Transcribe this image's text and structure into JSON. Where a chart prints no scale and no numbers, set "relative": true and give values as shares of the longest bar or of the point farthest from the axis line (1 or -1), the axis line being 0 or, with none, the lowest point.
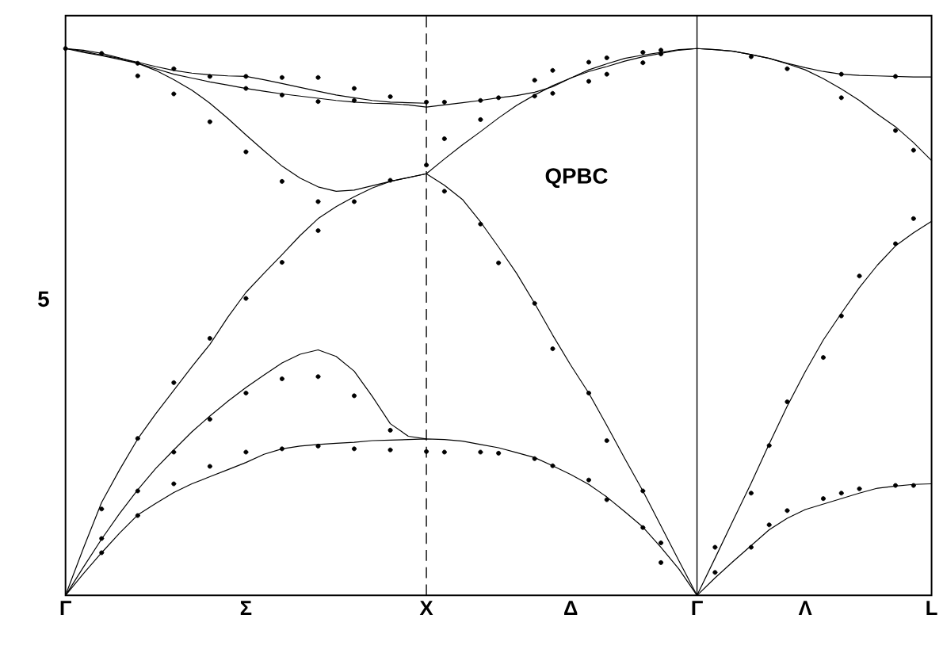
{
  "chart_data": {
    "type": "line",
    "relative": true,
    "annotations": [
      "QPBC",
      "5"
    ],
    "categories": [
      "Γ",
      null,
      null,
      null,
      null,
      null,
      null,
      null,
      null,
      null,
      "Σ",
      null,
      null,
      null,
      null,
      null,
      null,
      null,
      null,
      null,
      "X",
      null,
      null,
      null,
      null,
      null,
      null,
      null,
      "Δ",
      null,
      null,
      null,
      null,
      null,
      null,
      "Γ",
      null,
      null,
      null,
      null,
      null,
      "Λ",
      null,
      null,
      null,
      null,
      null,
      null,
      "L"
    ],
    "ref_lines": [
      {
        "axis": "x",
        "value": "X",
        "line_style": "dashed"
      }
    ],
    "series": [
      {
        "color": "#000000",
        "values": [
          0,
          0.04,
          0.078,
          0.114,
          0.147,
          0.168,
          0.188,
          0.204,
          0.217,
          0.23,
          0.243,
          0.258,
          0.268,
          0.273,
          0.276,
          0.278,
          0.28,
          0.283,
          0.284,
          0.285,
          0.286,
          0.285,
          0.282,
          0.276,
          0.27,
          0.261,
          0.252,
          0.237,
          0.221,
          0.203,
          0.18,
          0.153,
          0.125,
          0.088,
          0.048,
          0,
          0.032,
          0.062,
          0.091,
          0.12,
          0.141,
          0.157,
          0.167,
          0.177,
          0.187,
          0.196,
          0.2,
          0.203,
          0.204
        ]
      },
      {
        "color": "#000000",
        "values": [
          0,
          0.052,
          0.103,
          0.15,
          0.193,
          0.232,
          0.266,
          0.299,
          0.328,
          0.355,
          0.38,
          0.403,
          0.425,
          0.441,
          0.449,
          0.437,
          0.41,
          0.364,
          0.314,
          0.291,
          0.286,
          null,
          null,
          null,
          null,
          null,
          null,
          null,
          null,
          null,
          null,
          null,
          null,
          null,
          null,
          null,
          null,
          null,
          null,
          null,
          null,
          null,
          null,
          null,
          null,
          null,
          null,
          null,
          null
        ]
      },
      {
        "color": "#000000",
        "values": [
          0,
          0.087,
          0.17,
          0.23,
          0.286,
          0.332,
          0.375,
          0.418,
          0.459,
          0.509,
          0.554,
          0.589,
          0.623,
          0.658,
          0.689,
          0.711,
          0.729,
          0.745,
          0.757,
          0.764,
          0.771,
          0.75,
          0.724,
          0.683,
          0.637,
          0.589,
          0.534,
          0.476,
          0.421,
          0.37,
          0.311,
          0.25,
          0.191,
          0.127,
          0.063,
          0,
          0.068,
          0.137,
          0.205,
          0.277,
          0.346,
          0.409,
          0.467,
          0.516,
          0.563,
          0.604,
          0.639,
          0.663,
          0.684
        ]
      },
      {
        "color": "#000000",
        "values": [
          1,
          0.997,
          0.991,
          0.983,
          0.973,
          0.96,
          0.943,
          0.924,
          0.9,
          0.872,
          0.842,
          0.813,
          0.785,
          0.763,
          0.747,
          0.739,
          0.741,
          0.749,
          0.757,
          0.764,
          0.771,
          0.798,
          0.824,
          0.848,
          0.873,
          0.896,
          0.915,
          0.932,
          0.946,
          0.958,
          0.967,
          0.977,
          0.985,
          0.991,
          0.997,
          1,
          0.998,
          0.995,
          0.989,
          0.982,
          0.972,
          0.961,
          0.945,
          0.926,
          0.905,
          0.88,
          0.857,
          0.828,
          0.795
        ]
      },
      {
        "color": "#000000",
        "values": [
          1,
          0.993,
          0.987,
          0.98,
          0.973,
          0.963,
          0.953,
          0.946,
          0.939,
          0.933,
          0.927,
          0.922,
          0.917,
          0.913,
          0.909,
          0.905,
          0.902,
          0.9,
          0.899,
          0.897,
          0.893,
          0.897,
          0.901,
          0.905,
          0.91,
          0.914,
          0.92,
          0.93,
          0.946,
          0.961,
          0.972,
          0.982,
          0.988,
          0.993,
          0.998,
          1,
          0.998,
          0.995,
          0.989,
          0.982,
          0.973,
          0.965,
          0.958,
          0.953,
          0.951,
          0.95,
          0.949,
          0.948,
          0.948
        ]
      },
      {
        "color": "#000000",
        "values": [
          1,
          0.995,
          0.988,
          0.982,
          0.975,
          0.967,
          0.96,
          0.955,
          0.952,
          0.95,
          0.949,
          0.943,
          0.936,
          0.929,
          0.922,
          0.915,
          0.91,
          0.905,
          0.902,
          0.901,
          0.9,
          null,
          null,
          null,
          null,
          null,
          null,
          null,
          null,
          null,
          null,
          null,
          null,
          null,
          null,
          null,
          null,
          null,
          null,
          null,
          null,
          null,
          null,
          null,
          null,
          null,
          null,
          null,
          null
        ]
      },
      {
        "type": "scatter",
        "color": "#000000",
        "marker": "circle",
        "values": [
          1,
          null,
          0.078,
          null,
          0.146,
          null,
          0.204,
          null,
          0.236,
          null,
          0.262,
          null,
          0.268,
          null,
          0.273,
          null,
          0.268,
          null,
          0.266,
          null,
          0.263,
          0.262,
          null,
          0.262,
          0.26,
          null,
          0.25,
          0.237,
          null,
          0.211,
          0.175,
          null,
          0.124,
          0.06,
          null,
          null,
          0.042,
          null,
          0.088,
          0.129,
          0.155,
          null,
          0.177,
          0.187,
          0.195,
          null,
          0.201,
          0.201,
          null
        ]
      },
      {
        "type": "scatter",
        "color": "#000000",
        "marker": "circle",
        "values": [
          null,
          null,
          0.104,
          null,
          0.191,
          null,
          0.262,
          null,
          0.322,
          null,
          0.37,
          null,
          0.396,
          null,
          0.4,
          null,
          0.365,
          null,
          0.302,
          null,
          0.787,
          0.739,
          null,
          0.679,
          0.608,
          null,
          0.534,
          0.451,
          null,
          0.37,
          0.283,
          null,
          0.191,
          0.096,
          null,
          null,
          0.088,
          null,
          0.187,
          0.274,
          0.354,
          null,
          0.435,
          0.511,
          0.584,
          null,
          0.643,
          0.689,
          null
        ]
      },
      {
        "type": "scatter",
        "color": "#000000",
        "marker": "circle",
        "values": [
          null,
          null,
          0.158,
          null,
          0.287,
          null,
          0.389,
          null,
          0.47,
          null,
          0.543,
          null,
          0.609,
          null,
          0.667,
          null,
          0.72,
          null,
          0.759,
          null,
          0.902,
          0.835,
          null,
          0.87,
          0.91,
          null,
          0.913,
          0.918,
          null,
          0.94,
          0.953,
          null,
          0.974,
          0.99,
          null,
          null,
          null,
          null,
          0.985,
          null,
          0.963,
          null,
          null,
          0.91,
          null,
          null,
          0.85,
          0.814,
          null
        ]
      },
      {
        "type": "scatter",
        "color": "#000000",
        "marker": "circle",
        "values": [
          null,
          null,
          0.991,
          null,
          0.95,
          null,
          0.917,
          null,
          0.866,
          null,
          0.811,
          null,
          0.757,
          null,
          0.72,
          null,
          0.905,
          null,
          0.912,
          null,
          null,
          0.902,
          null,
          0.905,
          null,
          null,
          0.942,
          0.96,
          null,
          0.975,
          0.983,
          null,
          0.993,
          0.997,
          null,
          null,
          null,
          null,
          null,
          null,
          null,
          null,
          null,
          0.953,
          null,
          null,
          0.949,
          null,
          null
        ]
      },
      {
        "type": "scatter",
        "color": "#000000",
        "marker": "circle",
        "values": [
          null,
          null,
          null,
          null,
          0.973,
          null,
          0.963,
          null,
          0.949,
          null,
          0.927,
          null,
          0.915,
          null,
          0.903,
          null,
          0.927,
          null,
          null,
          null,
          null,
          null,
          null,
          null,
          null,
          null,
          null,
          null,
          null,
          null,
          null,
          null,
          null,
          null,
          null,
          null,
          null,
          null,
          null,
          null,
          null,
          null,
          null,
          null,
          null,
          null,
          null,
          null,
          null
        ]
      },
      {
        "type": "scatter",
        "color": "#000000",
        "marker": "circle",
        "values": [
          null,
          null,
          null,
          null,
          null,
          null,
          null,
          null,
          null,
          null,
          0.949,
          null,
          0.947,
          null,
          0.947,
          null,
          null,
          null,
          null,
          null,
          null,
          null,
          null,
          null,
          null,
          null,
          null,
          null,
          null,
          null,
          null,
          null,
          null,
          null,
          null,
          null,
          null,
          null,
          null,
          null,
          null,
          null,
          null,
          null,
          null,
          null,
          null,
          null,
          null
        ]
      }
    ]
  }
}
